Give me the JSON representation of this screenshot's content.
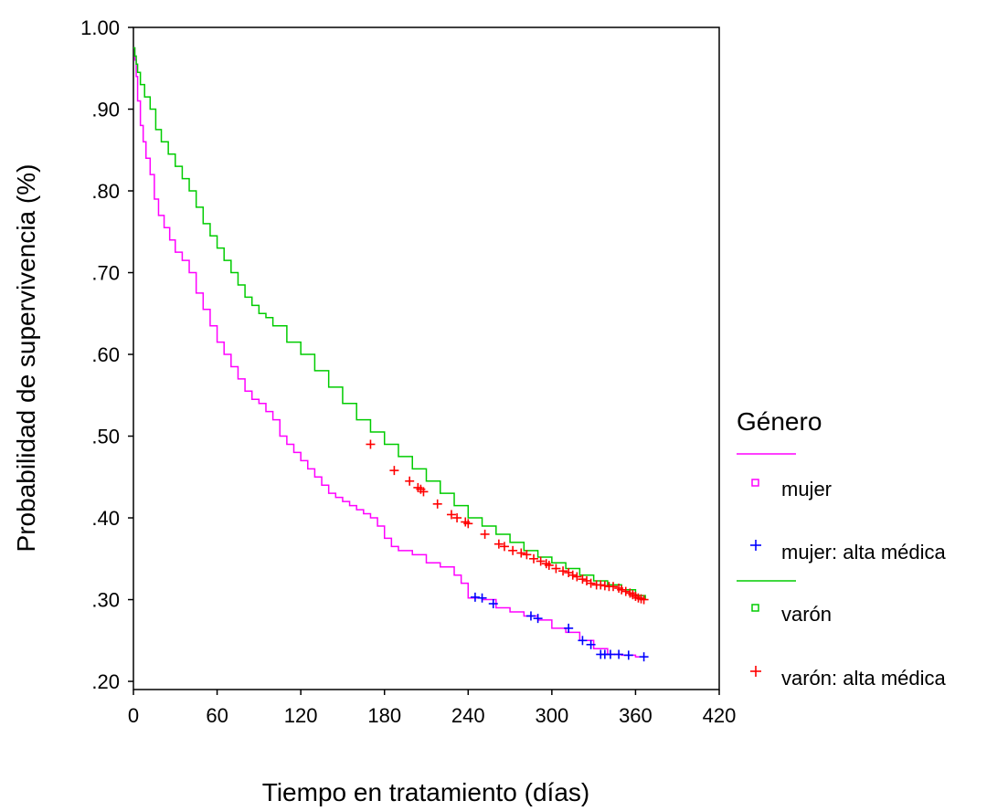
{
  "chart_data": {
    "type": "line",
    "xlabel": "Tiempo en tratamiento (días)",
    "ylabel": "Probabilidad de supervivencia (%)",
    "xlim": [
      0,
      420
    ],
    "ylim": [
      0.19,
      1.0
    ],
    "x_ticks": [
      0,
      60,
      120,
      180,
      240,
      300,
      360,
      420
    ],
    "x_tick_labels": [
      "0",
      "60",
      "120",
      "180",
      "240",
      "300",
      "360",
      "420"
    ],
    "y_ticks": [
      0.2,
      0.3,
      0.4,
      0.5,
      0.6,
      0.7,
      0.8,
      0.9,
      1.0
    ],
    "y_tick_labels": [
      ".20",
      ".30",
      ".40",
      ".50",
      ".60",
      ".70",
      ".80",
      ".90",
      "1.00"
    ],
    "grid": false,
    "legend": {
      "title": "Género",
      "placement": "right",
      "entries": [
        {
          "label": "mujer",
          "marker": "square",
          "color": "#ff00ff"
        },
        {
          "label": "mujer: alta médica",
          "marker": "plus",
          "color": "#0000ff"
        },
        {
          "label": "varón",
          "marker": "square",
          "color": "#00cc00"
        },
        {
          "label": "varón: alta médica",
          "marker": "plus",
          "color": "#ff0000"
        }
      ]
    },
    "series": [
      {
        "name": "mujer",
        "color": "#ff00ff",
        "x": [
          0,
          1,
          2,
          3,
          5,
          7,
          9,
          12,
          15,
          18,
          22,
          26,
          30,
          35,
          40,
          45,
          50,
          55,
          60,
          65,
          70,
          75,
          80,
          85,
          90,
          95,
          100,
          105,
          110,
          115,
          120,
          125,
          130,
          135,
          140,
          145,
          150,
          155,
          160,
          165,
          170,
          175,
          180,
          185,
          190,
          195,
          200,
          210,
          220,
          230,
          235,
          240,
          250,
          260,
          270,
          280,
          290,
          300,
          310,
          320,
          330,
          340,
          350,
          360,
          367
        ],
        "y": [
          0.975,
          0.96,
          0.94,
          0.91,
          0.88,
          0.86,
          0.84,
          0.82,
          0.79,
          0.77,
          0.755,
          0.74,
          0.725,
          0.715,
          0.7,
          0.675,
          0.655,
          0.635,
          0.615,
          0.6,
          0.585,
          0.57,
          0.555,
          0.545,
          0.54,
          0.53,
          0.52,
          0.5,
          0.49,
          0.48,
          0.47,
          0.46,
          0.45,
          0.44,
          0.43,
          0.425,
          0.42,
          0.415,
          0.41,
          0.405,
          0.4,
          0.39,
          0.375,
          0.365,
          0.36,
          0.36,
          0.355,
          0.345,
          0.34,
          0.33,
          0.32,
          0.302,
          0.3,
          0.29,
          0.285,
          0.28,
          0.275,
          0.265,
          0.26,
          0.25,
          0.24,
          0.233,
          0.232,
          0.23,
          0.23
        ]
      },
      {
        "name": "varón",
        "color": "#00cc00",
        "x": [
          0,
          1,
          2,
          3,
          5,
          8,
          12,
          16,
          20,
          25,
          30,
          35,
          40,
          45,
          50,
          55,
          60,
          65,
          70,
          75,
          80,
          85,
          90,
          95,
          100,
          110,
          120,
          130,
          140,
          150,
          160,
          170,
          180,
          190,
          200,
          210,
          220,
          230,
          240,
          250,
          260,
          270,
          280,
          290,
          300,
          310,
          320,
          330,
          340,
          350,
          360,
          367
        ],
        "y": [
          0.975,
          0.965,
          0.955,
          0.945,
          0.93,
          0.915,
          0.9,
          0.875,
          0.86,
          0.845,
          0.83,
          0.815,
          0.8,
          0.78,
          0.76,
          0.745,
          0.73,
          0.715,
          0.7,
          0.685,
          0.67,
          0.66,
          0.65,
          0.645,
          0.635,
          0.615,
          0.6,
          0.58,
          0.56,
          0.54,
          0.52,
          0.505,
          0.49,
          0.475,
          0.46,
          0.445,
          0.43,
          0.415,
          0.4,
          0.39,
          0.38,
          0.37,
          0.36,
          0.352,
          0.345,
          0.338,
          0.33,
          0.323,
          0.318,
          0.312,
          0.305,
          0.3
        ]
      }
    ],
    "censored": [
      {
        "name": "mujer: alta médica",
        "color": "#0000ff",
        "x": [
          245,
          250,
          258,
          285,
          290,
          312,
          322,
          328,
          335,
          338,
          342,
          348,
          355,
          366
        ],
        "y": [
          0.303,
          0.302,
          0.295,
          0.28,
          0.277,
          0.265,
          0.25,
          0.245,
          0.233,
          0.233,
          0.233,
          0.233,
          0.232,
          0.23
        ]
      },
      {
        "name": "varón: alta médica",
        "color": "#ff0000",
        "x": [
          170,
          187,
          198,
          204,
          206,
          208,
          218,
          228,
          232,
          238,
          240,
          252,
          262,
          266,
          272,
          278,
          282,
          287,
          292,
          296,
          298,
          303,
          308,
          312,
          315,
          318,
          322,
          325,
          328,
          332,
          335,
          338,
          341,
          344,
          348,
          350,
          353,
          356,
          358,
          360,
          362,
          364,
          366
        ],
        "y": [
          0.49,
          0.458,
          0.445,
          0.437,
          0.435,
          0.432,
          0.417,
          0.404,
          0.4,
          0.395,
          0.393,
          0.38,
          0.368,
          0.365,
          0.36,
          0.357,
          0.355,
          0.35,
          0.347,
          0.344,
          0.342,
          0.338,
          0.335,
          0.333,
          0.33,
          0.328,
          0.325,
          0.323,
          0.32,
          0.318,
          0.318,
          0.317,
          0.316,
          0.316,
          0.314,
          0.312,
          0.31,
          0.308,
          0.306,
          0.304,
          0.302,
          0.301,
          0.3
        ]
      }
    ]
  }
}
